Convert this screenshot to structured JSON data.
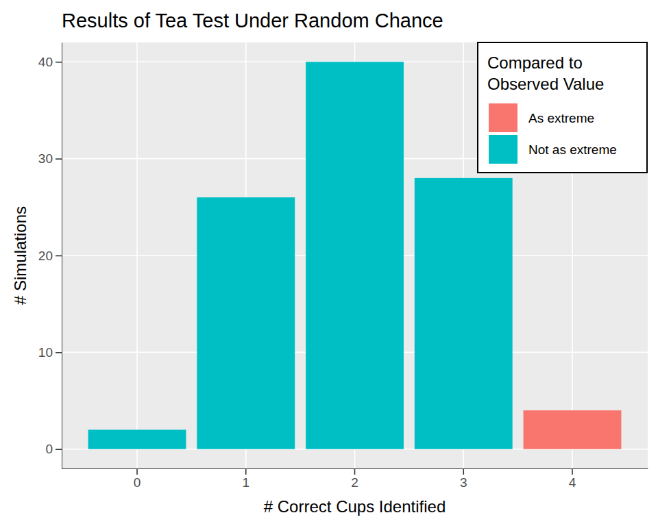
{
  "chart_data": {
    "type": "bar",
    "title": "Results of Tea Test Under Random Chance",
    "x_label": "# Correct Cups Identified",
    "y_label": "# Simulations",
    "categories": [
      "0",
      "1",
      "2",
      "3",
      "4"
    ],
    "series": [
      {
        "name": "As extreme",
        "color": "#F8766D",
        "values": [
          null,
          null,
          null,
          null,
          4
        ]
      },
      {
        "name": "Not as extreme",
        "color": "#00BFC4",
        "values": [
          2,
          26,
          40,
          28,
          null
        ]
      }
    ],
    "stacked": true,
    "legend_title": "Compared to\nObserved Value",
    "legend": "top-right",
    "ylim": [
      -2,
      42
    ],
    "yticks": [
      0,
      10,
      20,
      30,
      40
    ],
    "grid": true
  }
}
